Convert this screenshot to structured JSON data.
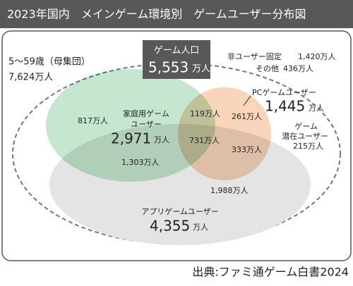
{
  "header": {
    "title": "2023年国内　メインゲーム環境別　ゲームユーザー分布図"
  },
  "population": {
    "label": "5〜59歳（母集団）",
    "value": "7,624万人"
  },
  "game_population": {
    "label": "ゲーム人口",
    "value": "5,553",
    "unit": "万人"
  },
  "non_users": [
    {
      "label": "非ユーザー固定",
      "value": "1,420万人"
    },
    {
      "label": "その他",
      "value": "436万人"
    }
  ],
  "console": {
    "label_lines": [
      "家庭用ゲーム",
      "ユーザー"
    ],
    "value": "2,971",
    "unit": "万人"
  },
  "pc": {
    "label": "PCゲームユーザー",
    "value": "1,445",
    "unit": "万人"
  },
  "app": {
    "label": "アプリゲームユーザー",
    "value": "4,355",
    "unit": "万人"
  },
  "potential": {
    "label_lines": [
      "ゲーム",
      "潜在ユーザー"
    ],
    "value": "215万人"
  },
  "regions": {
    "console_only": "817万人",
    "console_pc": "119万人",
    "pc_only": "261万人",
    "all_three": "731万人",
    "pc_app": "333万人",
    "console_app": "1,303万人",
    "app_only": "1,988万人"
  },
  "source": "出典:ファミ通ゲーム白書2024"
}
